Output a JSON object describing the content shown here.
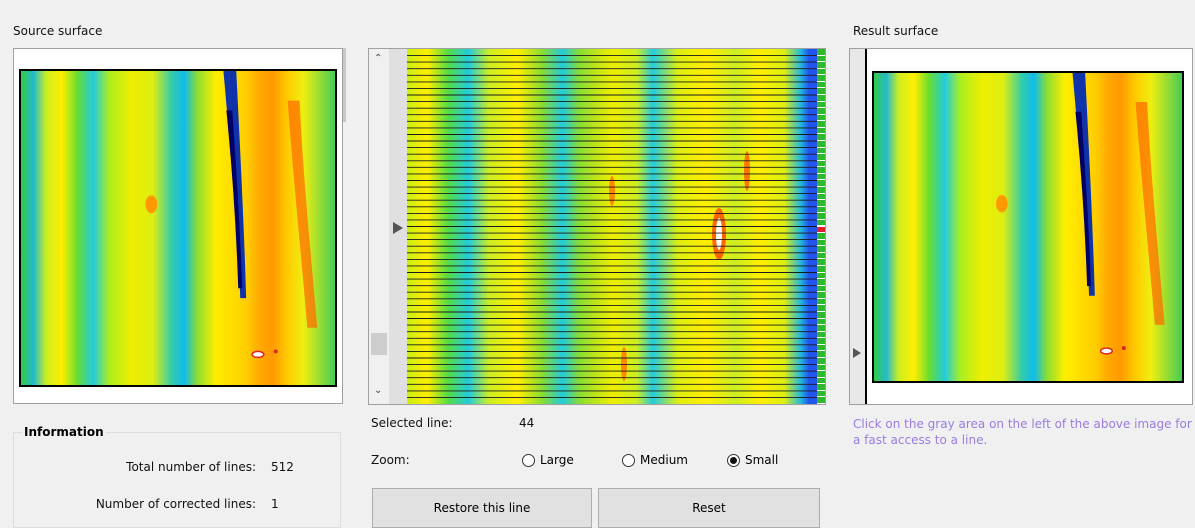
{
  "source_panel": {
    "title": "Source surface"
  },
  "result_panel": {
    "title": "Result surface"
  },
  "line_viewer": {
    "selected_line_label": "Selected line:",
    "selected_line_value": "44",
    "zoom_label": "Zoom:",
    "zoom_options": [
      "Large",
      "Medium",
      "Small"
    ],
    "zoom_selected": "Small",
    "restore_button": "Restore this line",
    "reset_button": "Reset"
  },
  "information": {
    "title": "Information",
    "total_lines_label": "Total number of lines:",
    "total_lines_value": "512",
    "corrected_lines_label": "Number of corrected lines:",
    "corrected_lines_value": "1"
  },
  "hint_text": "Click on the gray area on the left of the above image for a fast access to a line.",
  "colors": {
    "hint": "#9a7de0",
    "corrected_marker": "#e0202a",
    "ok_marker": "#2db82d"
  }
}
